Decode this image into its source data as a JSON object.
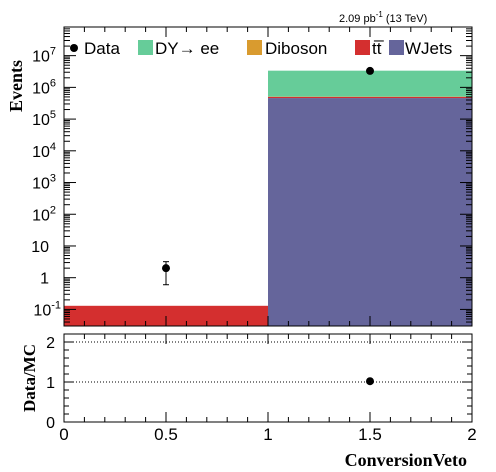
{
  "chart_data": {
    "type": "bar",
    "lumi_label": {
      "main": "2.09 pb",
      "sup": "-1",
      "rest": " (13 TeV)"
    },
    "xlabel": "ConversionVeto",
    "ylabel": "Events",
    "ratio_ylabel": "Data/MC",
    "x_bin_edges": [
      0,
      1,
      2
    ],
    "xlim": [
      0,
      2
    ],
    "ylim": [
      0.03,
      80000000
    ],
    "y_scale": "log",
    "ratio_ylim": [
      0,
      2.2
    ],
    "ratio_reference_lines": [
      1,
      2
    ],
    "x_tick_labels": [
      "0",
      "0.5",
      "1",
      "1.5",
      "2"
    ],
    "y_tick_labels": [
      {
        "value": 0.1,
        "base": "10",
        "exp": "-1"
      },
      {
        "value": 1,
        "base": "1",
        "exp": ""
      },
      {
        "value": 10,
        "base": "10",
        "exp": ""
      },
      {
        "value": 100,
        "base": "10",
        "exp": "2"
      },
      {
        "value": 1000,
        "base": "10",
        "exp": "3"
      },
      {
        "value": 10000,
        "base": "10",
        "exp": "4"
      },
      {
        "value": 100000,
        "base": "10",
        "exp": "5"
      },
      {
        "value": 1000000,
        "base": "10",
        "exp": "6"
      },
      {
        "value": 10000000,
        "base": "10",
        "exp": "7"
      }
    ],
    "ratio_tick_labels": [
      "0",
      "1",
      "2"
    ],
    "legend": {
      "data": "Data",
      "dy": "DY→ ee",
      "diboson": "Diboson",
      "ttbar": "tt̅",
      "wjets": "WJets"
    },
    "stack_order": [
      "wjets",
      "ttbar",
      "diboson",
      "dy"
    ],
    "series": [
      {
        "key": "wjets",
        "name": "WJets",
        "color": "#65659b",
        "values": [
          0,
          460000
        ]
      },
      {
        "key": "ttbar",
        "name": "tt̅",
        "color": "#d42f2f",
        "values": [
          0.13,
          40000
        ]
      },
      {
        "key": "diboson",
        "name": "Diboson",
        "color": "#d99b2f",
        "values": [
          0,
          10000
        ]
      },
      {
        "key": "dy",
        "name": "DY→ ee",
        "color": "#66cc99",
        "values": [
          0,
          2850000
        ]
      }
    ],
    "data_points": [
      {
        "x": 0.5,
        "y": 2,
        "y_low": 0.6,
        "y_high": 3.2
      },
      {
        "x": 1.5,
        "y": 3300000,
        "y_low": 3300000,
        "y_high": 3300000
      }
    ],
    "ratio_points": [
      {
        "x": 1.5,
        "y": 1.02
      }
    ]
  }
}
